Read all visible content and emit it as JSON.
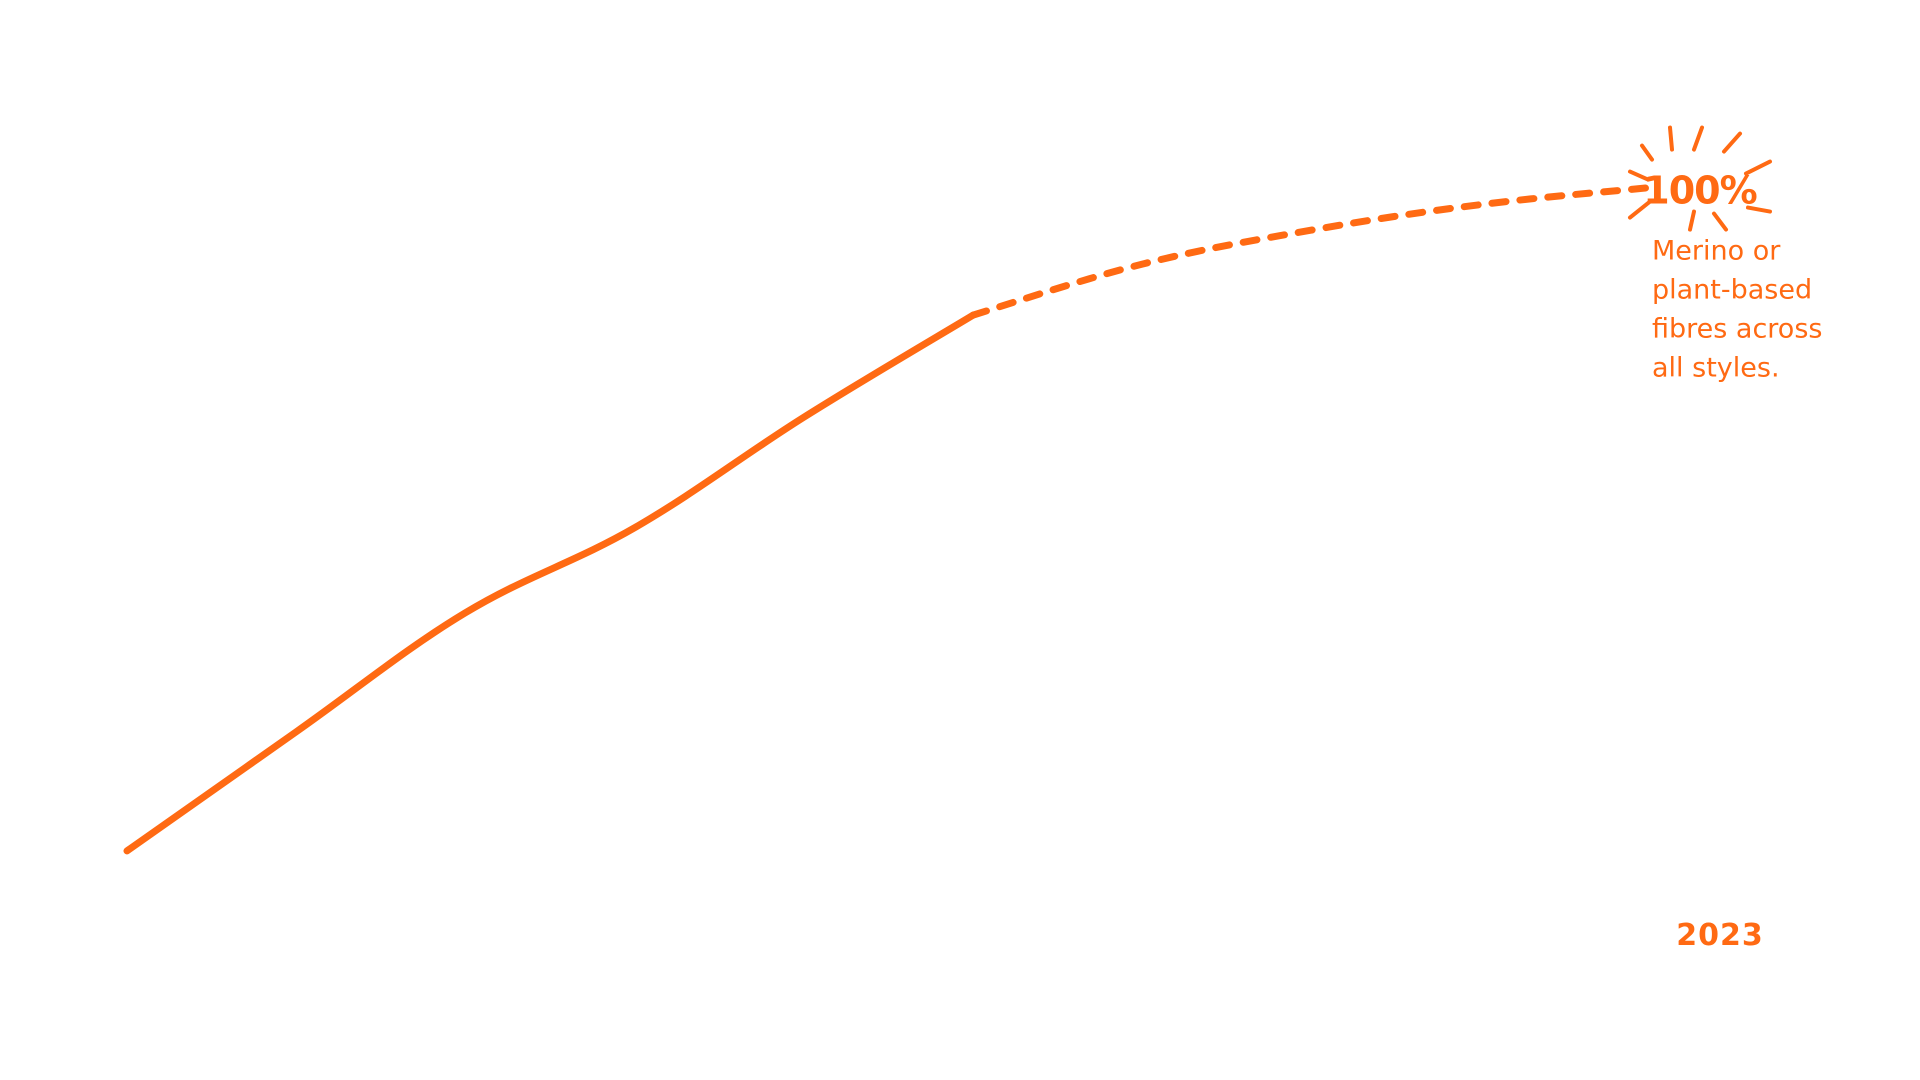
{
  "chart_data": {
    "type": "line",
    "x": [
      "",
      "",
      "",
      "",
      "",
      "",
      "",
      "",
      "",
      "2023"
    ],
    "series": [
      {
        "values": [
          22,
          36,
          50,
          60,
          73,
          85,
          91,
          95,
          98,
          100
        ],
        "segments": {
          "solid_until_index": 5,
          "dashed_from_index": 5
        }
      }
    ],
    "ylim": [
      0,
      115
    ],
    "grid": false,
    "highlight": {
      "value_label": "100%",
      "note": [
        "Merino or",
        "plant-based",
        "fibres across",
        "all styles."
      ]
    },
    "x_tick_labels": [
      "2023"
    ],
    "color": "#FF6A13"
  }
}
